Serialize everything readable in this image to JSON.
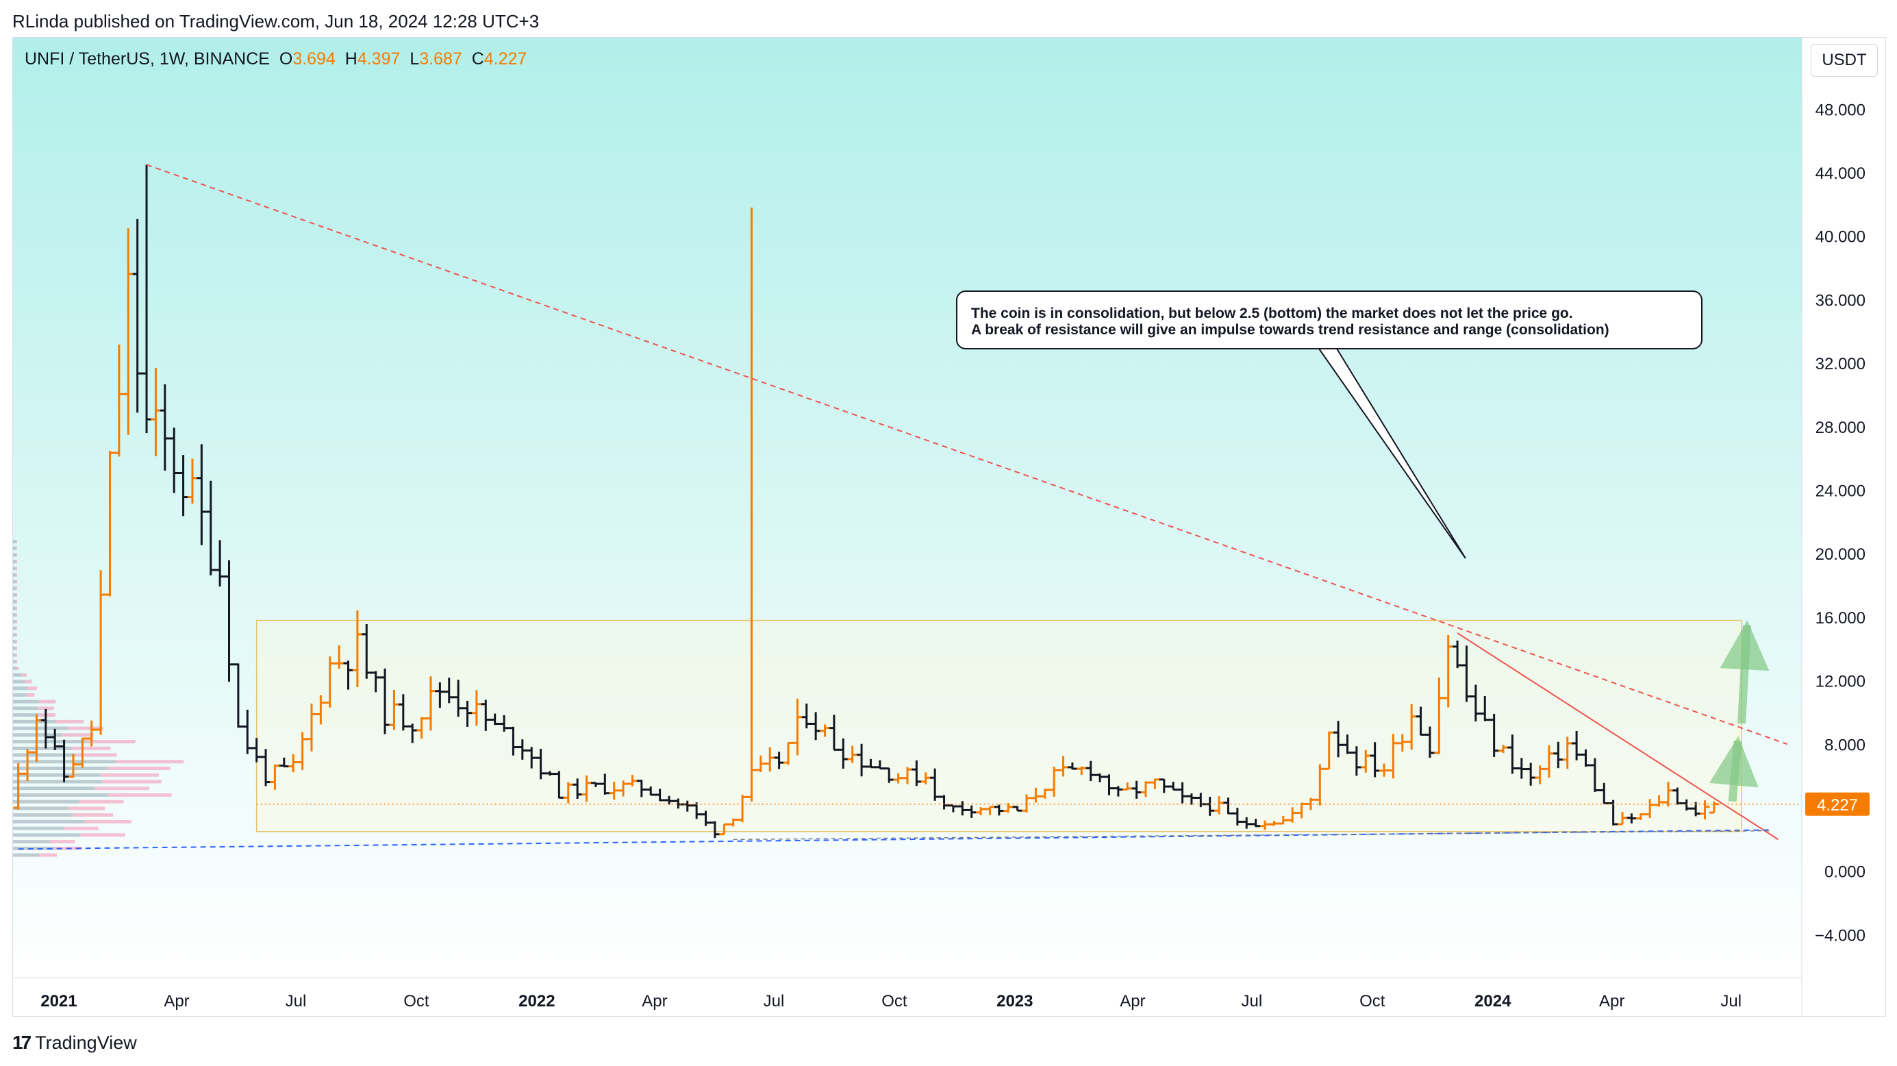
{
  "header": {
    "publisher": "RLinda published on TradingView.com, Jun 18, 2024 12:28 UTC+3"
  },
  "legend": {
    "symbol": "UNFI / TetherUS, 1W, BINANCE",
    "open_label": "O",
    "open": "3.694",
    "high_label": "H",
    "high": "4.397",
    "low_label": "L",
    "low": "3.687",
    "close_label": "C",
    "close": "4.227"
  },
  "footer": {
    "brand": "TradingView",
    "brand_icon": "tradingview-logo-icon"
  },
  "colors": {
    "up": "#f57c00",
    "down": "#131722",
    "bg_top": "#b2efea",
    "bg_bottom": "#ffffff",
    "range_box": "#e6c46a",
    "trend_resistance": "#ef5350",
    "support": "#2962ff",
    "arrow": "#81c784"
  },
  "annotation": {
    "line1": "The coin is in consolidation, but below 2.5 (bottom) the market does not let the price go.",
    "line2": "A break of resistance will give an impulse towards trend resistance and range (consolidation)"
  },
  "chart_data": {
    "type": "ohlc",
    "title": "",
    "price_unit": "USDT",
    "y_ticks": [
      "48.000",
      "44.000",
      "40.000",
      "36.000",
      "32.000",
      "28.000",
      "24.000",
      "20.000",
      "16.000",
      "12.000",
      "8.000",
      "4.000",
      "0.000",
      "−4.000"
    ],
    "ylim": [
      -6.7,
      52.5
    ],
    "x_ticks": [
      {
        "label": "2021",
        "date": "2021-01-01",
        "bold": true
      },
      {
        "label": "Apr",
        "date": "2021-04-01",
        "bold": false
      },
      {
        "label": "Jul",
        "date": "2021-07-01",
        "bold": false
      },
      {
        "label": "Oct",
        "date": "2021-10-01",
        "bold": false
      },
      {
        "label": "2022",
        "date": "2022-01-01",
        "bold": true
      },
      {
        "label": "Apr",
        "date": "2022-04-01",
        "bold": false
      },
      {
        "label": "Jul",
        "date": "2022-07-01",
        "bold": false
      },
      {
        "label": "Oct",
        "date": "2022-10-01",
        "bold": false
      },
      {
        "label": "2023",
        "date": "2023-01-01",
        "bold": true
      },
      {
        "label": "Apr",
        "date": "2023-04-01",
        "bold": false
      },
      {
        "label": "Jul",
        "date": "2023-07-01",
        "bold": false
      },
      {
        "label": "Oct",
        "date": "2023-10-01",
        "bold": false
      },
      {
        "label": "2024",
        "date": "2024-01-01",
        "bold": true
      },
      {
        "label": "Apr",
        "date": "2024-04-01",
        "bold": false
      },
      {
        "label": "Jul",
        "date": "2024-07-01",
        "bold": false
      }
    ],
    "xlim": [
      "2020-11-27",
      "2024-08-24"
    ],
    "last_price": "4.227",
    "last_price_value": 4.227,
    "keypoints": [
      {
        "date": "2020-12-01",
        "price": 4.0
      },
      {
        "date": "2020-12-22",
        "price": 10.0
      },
      {
        "date": "2021-01-12",
        "price": 6.0
      },
      {
        "date": "2021-02-02",
        "price": 9.0
      },
      {
        "date": "2021-02-16",
        "price": 25.0
      },
      {
        "date": "2021-03-02",
        "price": 36.0
      },
      {
        "date": "2021-03-16",
        "price": 28.0
      },
      {
        "date": "2021-04-06",
        "price": 26.0
      },
      {
        "date": "2021-04-27",
        "price": 22.0
      },
      {
        "date": "2021-05-11",
        "price": 19.0
      },
      {
        "date": "2021-05-25",
        "price": 9.0
      },
      {
        "date": "2021-06-15",
        "price": 6.0
      },
      {
        "date": "2021-07-06",
        "price": 6.5
      },
      {
        "date": "2021-08-03",
        "price": 13.0
      },
      {
        "date": "2021-08-24",
        "price": 14.0
      },
      {
        "date": "2021-09-14",
        "price": 10.0
      },
      {
        "date": "2021-10-05",
        "price": 9.5
      },
      {
        "date": "2021-10-26",
        "price": 11.5
      },
      {
        "date": "2021-11-16",
        "price": 10.5
      },
      {
        "date": "2021-12-07",
        "price": 9.0
      },
      {
        "date": "2021-12-28",
        "price": 8.0
      },
      {
        "date": "2022-01-25",
        "price": 5.0
      },
      {
        "date": "2022-02-22",
        "price": 5.3
      },
      {
        "date": "2022-03-29",
        "price": 5.3
      },
      {
        "date": "2022-05-03",
        "price": 4.0
      },
      {
        "date": "2022-05-24",
        "price": 2.5
      },
      {
        "date": "2022-06-07",
        "price": 3.5
      },
      {
        "date": "2022-06-21",
        "price": 6.0
      },
      {
        "date": "2022-07-12",
        "price": 7.0
      },
      {
        "date": "2022-08-02",
        "price": 10.0
      },
      {
        "date": "2022-08-23",
        "price": 8.0
      },
      {
        "date": "2022-09-13",
        "price": 7.0
      },
      {
        "date": "2022-10-11",
        "price": 6.0
      },
      {
        "date": "2022-11-01",
        "price": 6.0
      },
      {
        "date": "2022-11-15",
        "price": 4.0
      },
      {
        "date": "2022-12-13",
        "price": 4.0
      },
      {
        "date": "2023-01-10",
        "price": 3.8
      },
      {
        "date": "2023-02-07",
        "price": 6.0
      },
      {
        "date": "2023-03-07",
        "price": 6.5
      },
      {
        "date": "2023-03-28",
        "price": 4.8
      },
      {
        "date": "2023-04-25",
        "price": 5.5
      },
      {
        "date": "2023-05-16",
        "price": 4.5
      },
      {
        "date": "2023-06-13",
        "price": 4.0
      },
      {
        "date": "2023-06-27",
        "price": 3.0
      },
      {
        "date": "2023-08-01",
        "price": 3.2
      },
      {
        "date": "2023-08-22",
        "price": 4.5
      },
      {
        "date": "2023-09-05",
        "price": 9.0
      },
      {
        "date": "2023-09-26",
        "price": 7.0
      },
      {
        "date": "2023-10-17",
        "price": 6.5
      },
      {
        "date": "2023-11-07",
        "price": 10.0
      },
      {
        "date": "2023-11-21",
        "price": 8.0
      },
      {
        "date": "2023-12-05",
        "price": 14.5
      },
      {
        "date": "2023-12-19",
        "price": 11.0
      },
      {
        "date": "2024-01-09",
        "price": 8.0
      },
      {
        "date": "2024-02-06",
        "price": 5.8
      },
      {
        "date": "2024-03-05",
        "price": 8.0
      },
      {
        "date": "2024-03-19",
        "price": 6.5
      },
      {
        "date": "2024-04-09",
        "price": 3.0
      },
      {
        "date": "2024-04-30",
        "price": 3.5
      },
      {
        "date": "2024-05-21",
        "price": 5.0
      },
      {
        "date": "2024-06-11",
        "price": 3.6
      },
      {
        "date": "2024-06-18",
        "price": 4.227
      }
    ],
    "spikes": [
      {
        "date": "2021-03-09",
        "high": 44.5
      },
      {
        "date": "2022-06-14",
        "high": 41.8
      }
    ],
    "drawings": {
      "range_box": {
        "from": "2021-06-01",
        "to": "2024-07-09",
        "top": 15.8,
        "bottom": 2.5
      },
      "long_trendline": {
        "from_date": "2021-03-09",
        "from_price": 44.5,
        "to_date": "2024-08-13",
        "to_price": 8.0
      },
      "short_trendline": {
        "from_date": "2023-12-05",
        "from_price": 15.0,
        "to_date": "2024-08-06",
        "to_price": 2.0
      },
      "support_line": {
        "from_date": "2020-12-01",
        "from_price": 1.4,
        "to_date": "2024-07-30",
        "to_price": 2.6
      },
      "bottom_line": {
        "from_date": "2022-05-31",
        "from_price": 2.0,
        "to_date": "2024-07-30",
        "to_price": 2.55
      },
      "arrows": [
        {
          "date": "2024-07-02",
          "from": 4.4,
          "to": 8.2
        },
        {
          "date": "2024-07-09",
          "from": 9.3,
          "to": 15.5
        }
      ]
    }
  }
}
